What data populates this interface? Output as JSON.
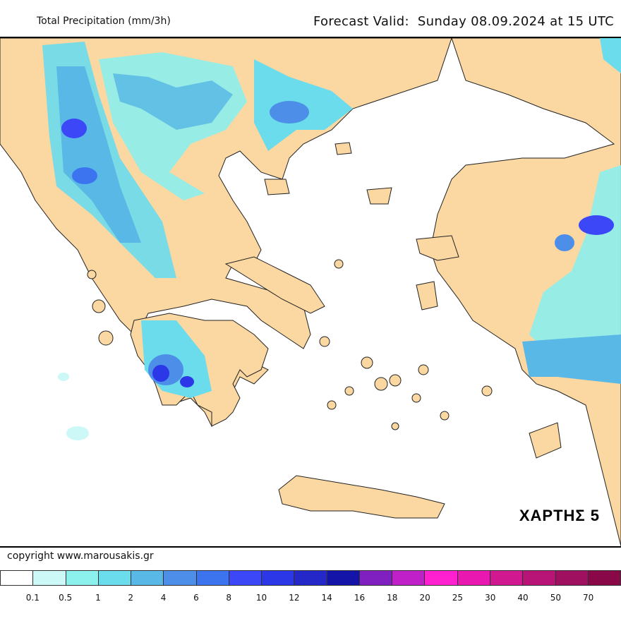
{
  "header": {
    "title": "Total Precipitation (mm/3h)",
    "valid_label": "Forecast Valid:",
    "valid_value": "Sunday 08.09.2024 at 15 UTC"
  },
  "map": {
    "stamp": "ΧΑΡΤΗΣ 5",
    "land_color": "#fbd7a2",
    "sea_color": "#ffffff"
  },
  "footer": {
    "copyright": "copyright www.marousakis.gr"
  },
  "legend": {
    "colors": [
      "#ffffff",
      "#cdf8f8",
      "#8cf0ec",
      "#6adcec",
      "#5ab8e6",
      "#4c8ee8",
      "#3c74f0",
      "#3c48f8",
      "#2c38e8",
      "#2428c8",
      "#1414a8",
      "#8020c0",
      "#c020c8",
      "#ff20d0",
      "#e818b0",
      "#d01890",
      "#b81478",
      "#a01060",
      "#880848"
    ],
    "labels": [
      "0.1",
      "0.5",
      "1",
      "2",
      "4",
      "6",
      "8",
      "10",
      "12",
      "14",
      "16",
      "18",
      "20",
      "25",
      "30",
      "40",
      "50",
      "70"
    ]
  }
}
